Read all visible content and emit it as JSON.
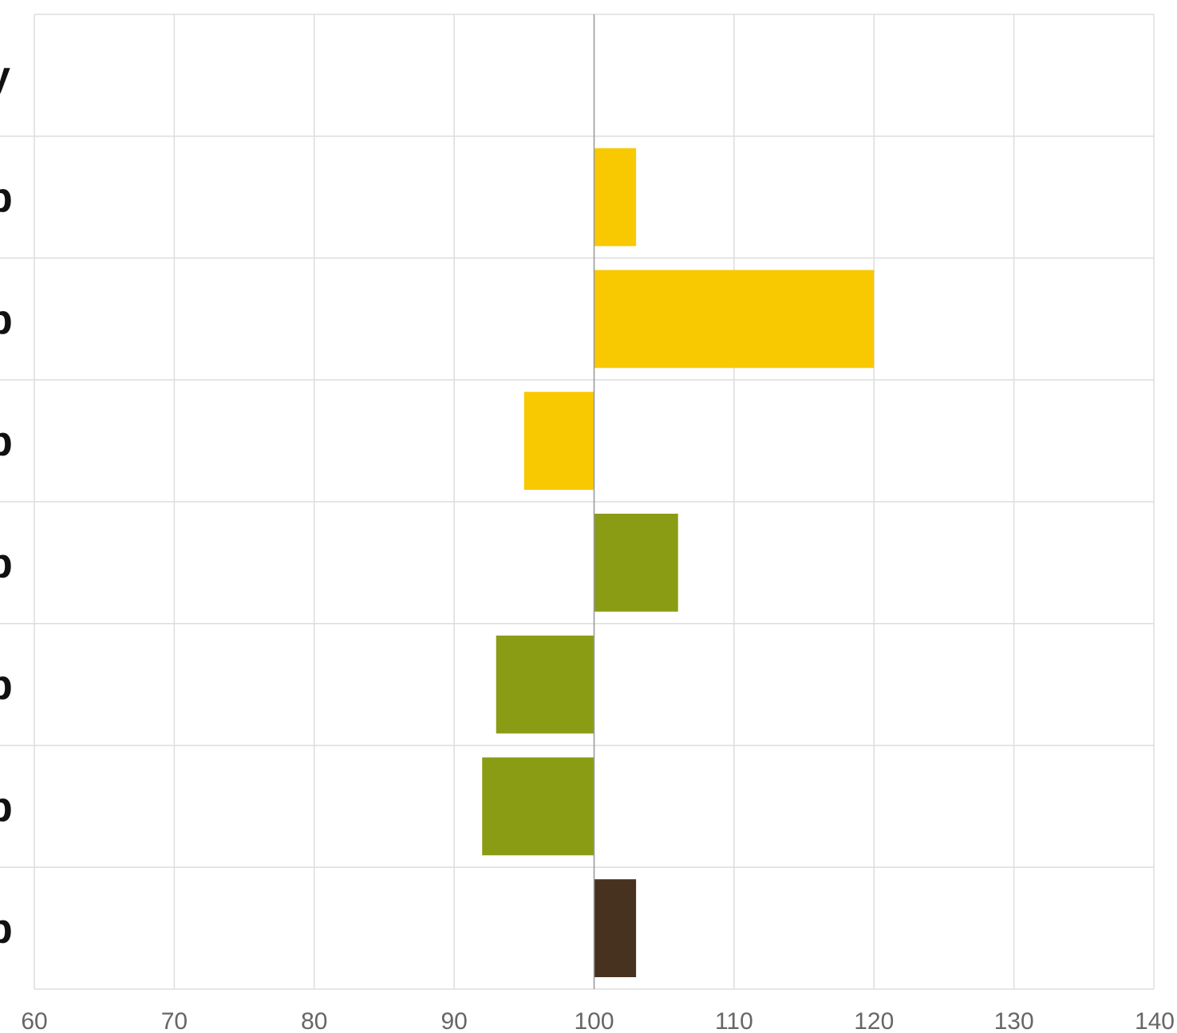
{
  "chart_data": {
    "type": "bar",
    "orientation": "horizontal",
    "title": "",
    "xlabel": "",
    "ylabel": "",
    "xlim": [
      60,
      140
    ],
    "xticks": [
      "60",
      "70",
      "80",
      "90",
      "100",
      "110",
      "120",
      "130",
      "140"
    ],
    "baseline": 100,
    "grid": true,
    "legend": "none",
    "row_labels": [
      "y",
      "b",
      "b",
      "b",
      "b",
      "b",
      "b",
      "b"
    ],
    "rows": [
      {
        "value": null,
        "color": ""
      },
      {
        "value": 103,
        "color": "#f8c800"
      },
      {
        "value": 120,
        "color": "#f8c800"
      },
      {
        "value": 95,
        "color": "#f8c800"
      },
      {
        "value": 106,
        "color": "#8a9c14"
      },
      {
        "value": 93,
        "color": "#8a9c14"
      },
      {
        "value": 92,
        "color": "#8a9c14"
      },
      {
        "value": 103,
        "color": "#47321f"
      }
    ]
  }
}
